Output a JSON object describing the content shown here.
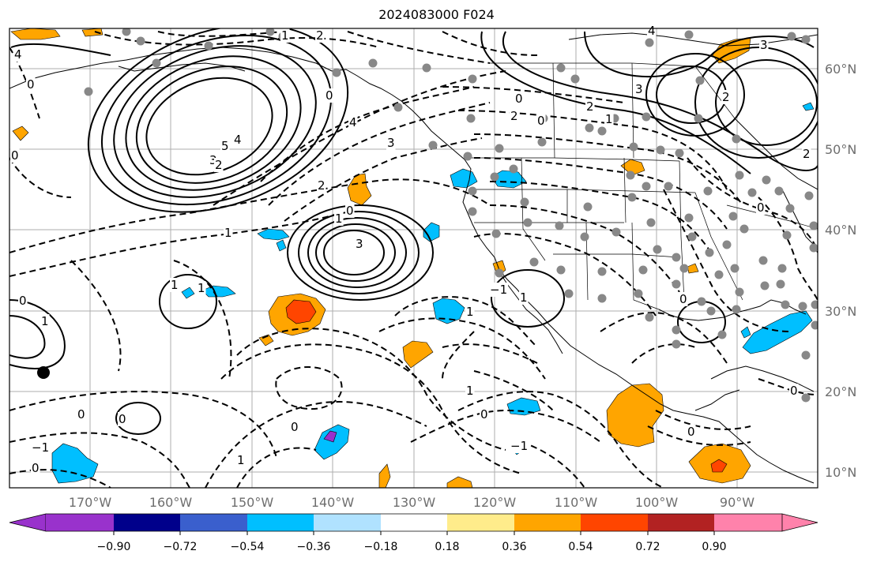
{
  "title": "2024083000 F024",
  "lon_labels": [
    "170°W",
    "160°W",
    "150°W",
    "140°W",
    "130°W",
    "120°W",
    "110°W",
    "100°W",
    "90°W"
  ],
  "lat_labels": [
    "60°N",
    "50°N",
    "40°N",
    "30°N",
    "20°N",
    "10°N"
  ],
  "colorbar": {
    "colors": [
      "#9932cc",
      "#00008b",
      "#3a5fcd",
      "#00bfff",
      "#b0e2ff",
      "#ffffff",
      "#ffec8b",
      "#ffa500",
      "#ff4500",
      "#b22222",
      "#ff82ab"
    ],
    "tick_labels": [
      "−0.90",
      "−0.72",
      "−0.54",
      "−0.36",
      "−0.18",
      "0.18",
      "0.36",
      "0.54",
      "0.72",
      "0.90"
    ]
  },
  "contour_labels": [
    "2",
    "3",
    "5",
    "4",
    "2",
    "3",
    "1",
    "0",
    "4",
    "3",
    "2",
    "1",
    "0",
    "0",
    "1",
    "0",
    "−1",
    "0",
    "0",
    "1",
    "0",
    "0",
    "0",
    "1",
    "2",
    "3",
    "0",
    "1",
    "2",
    "3",
    "0",
    "4",
    "−1",
    "0",
    "−1",
    "1",
    "2",
    "1",
    "0",
    "0",
    "2",
    "1",
    "1",
    "4",
    "1",
    "0",
    "0"
  ]
}
